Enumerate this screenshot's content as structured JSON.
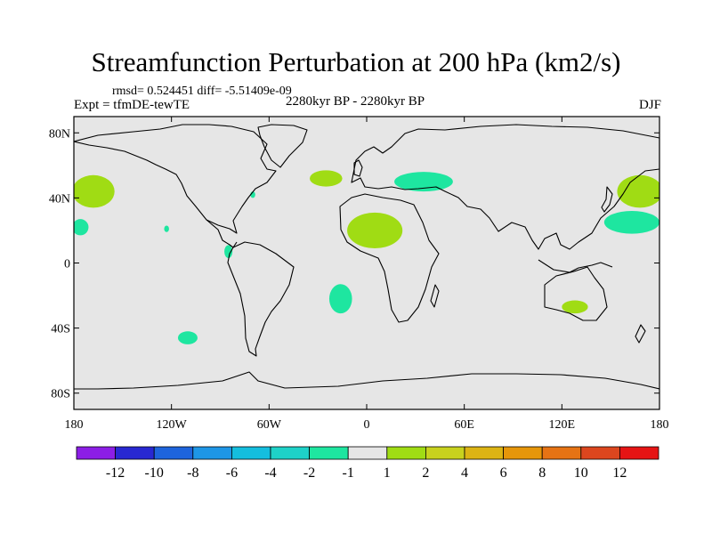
{
  "title": "Streamfunction Perturbation at 200 hPa (km2/s)",
  "stats": "rmsd= 0.524451 diff= -5.51409e-09",
  "experiment": "Expt = tfmDE-tewTE",
  "period": "2280kyr BP - 2280kyr BP",
  "season": "DJF",
  "axes": {
    "lon_ticks": [
      "180",
      "120W",
      "60W",
      "0",
      "60E",
      "120E",
      "180"
    ],
    "lat_ticks": [
      "80N",
      "40N",
      "0",
      "40S",
      "80S"
    ],
    "lon_range": [
      -180,
      180
    ],
    "lat_range": [
      -90,
      90
    ]
  },
  "colorbar": {
    "colors": [
      "#8c1ee6",
      "#2828d2",
      "#1e64dc",
      "#1e96e6",
      "#14bede",
      "#1ed2c8",
      "#1ee6a0",
      "#e6e6e6",
      "#a0dc14",
      "#c8d21e",
      "#dcb414",
      "#e6960a",
      "#e67314",
      "#dc461e",
      "#e61414"
    ],
    "labels": [
      "-12",
      "-10",
      "-8",
      "-6",
      "-4",
      "-2",
      "-1",
      "1",
      "2",
      "4",
      "6",
      "8",
      "10",
      "12"
    ]
  },
  "anomalies": [
    {
      "lon": -168,
      "lat": 44,
      "rlon": 13,
      "rlat": 10,
      "color": "#a0dc14"
    },
    {
      "lon": -176,
      "lat": 22,
      "rlon": 5,
      "rlat": 5,
      "color": "#1ee6a0"
    },
    {
      "lon": -85,
      "lat": 7,
      "rlon": 2.5,
      "rlat": 4,
      "color": "#1ee6a0"
    },
    {
      "lon": -70,
      "lat": 42,
      "rlon": 1.5,
      "rlat": 2,
      "color": "#1ee6a0"
    },
    {
      "lon": -25,
      "lat": 52,
      "rlon": 10,
      "rlat": 5,
      "color": "#a0dc14"
    },
    {
      "lon": 35,
      "lat": 50,
      "rlon": 18,
      "rlat": 6,
      "color": "#1ee6a0"
    },
    {
      "lon": 5,
      "lat": 20,
      "rlon": 17,
      "rlat": 11,
      "color": "#a0dc14"
    },
    {
      "lon": -16,
      "lat": -22,
      "rlon": 7,
      "rlat": 9,
      "color": "#1ee6a0"
    },
    {
      "lon": -110,
      "lat": -46,
      "rlon": 6,
      "rlat": 4,
      "color": "#1ee6a0"
    },
    {
      "lon": 168,
      "lat": 44,
      "rlon": 14,
      "rlat": 10,
      "color": "#a0dc14"
    },
    {
      "lon": 163,
      "lat": 25,
      "rlon": 17,
      "rlat": 7,
      "color": "#1ee6a0"
    },
    {
      "lon": 128,
      "lat": -27,
      "rlon": 8,
      "rlat": 4,
      "color": "#a0dc14"
    },
    {
      "lon": -123,
      "lat": 21,
      "rlon": 1.5,
      "rlat": 2,
      "color": "#1ee6a0"
    }
  ]
}
